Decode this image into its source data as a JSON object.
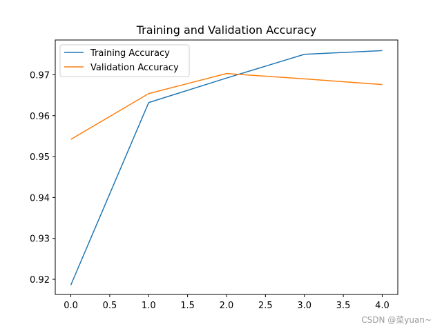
{
  "chart_data": {
    "type": "line",
    "title": "Training and Validation Accuracy",
    "xlabel": "",
    "ylabel": "",
    "x": [
      0,
      1,
      2,
      3,
      4
    ],
    "xlim": [
      -0.2,
      4.2
    ],
    "ylim": [
      0.9163,
      0.9785
    ],
    "x_ticks": [
      0.0,
      0.5,
      1.0,
      1.5,
      2.0,
      2.5,
      3.0,
      3.5,
      4.0
    ],
    "x_tick_labels": [
      "0.0",
      "0.5",
      "1.0",
      "1.5",
      "2.0",
      "2.5",
      "3.0",
      "3.5",
      "4.0"
    ],
    "y_ticks": [
      0.92,
      0.93,
      0.94,
      0.95,
      0.96,
      0.97
    ],
    "y_tick_labels": [
      "0.92",
      "0.93",
      "0.94",
      "0.95",
      "0.96",
      "0.97"
    ],
    "grid": false,
    "legend_position": "top-left",
    "series": [
      {
        "name": "Training Accuracy",
        "color": "#1f77b4",
        "values": [
          0.9186,
          0.9632,
          0.9692,
          0.975,
          0.9759
        ]
      },
      {
        "name": "Validation Accuracy",
        "color": "#ff7f0e",
        "values": [
          0.9542,
          0.9654,
          0.9703,
          0.969,
          0.9676
        ]
      }
    ]
  },
  "watermark": "CSDN @菜yuan~"
}
